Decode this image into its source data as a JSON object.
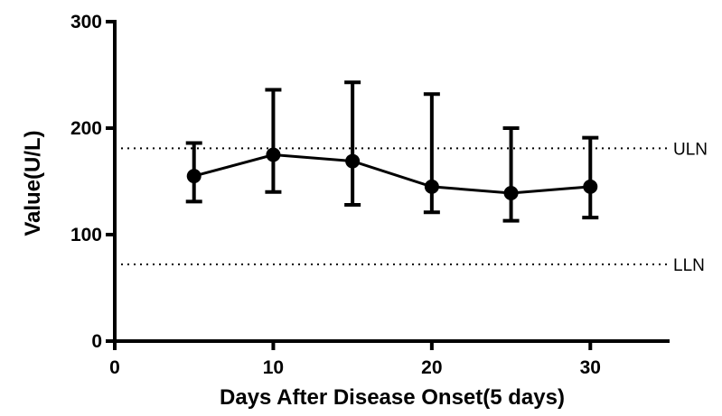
{
  "chart_data": {
    "type": "line",
    "title": "",
    "xlabel": "Days  After  Disease Onset(5 days)",
    "ylabel": "Value(U/L)",
    "xlim": [
      0,
      35
    ],
    "ylim": [
      0,
      300
    ],
    "x_ticks": [
      0,
      10,
      20,
      30
    ],
    "y_ticks": [
      0,
      100,
      200,
      300
    ],
    "grid": false,
    "series": [
      {
        "x": [
          5,
          10,
          15,
          20,
          25,
          30
        ],
        "y": [
          155,
          175,
          169,
          145,
          139,
          145
        ],
        "error_low": [
          131,
          140,
          128,
          121,
          113,
          116
        ],
        "error_high": [
          186,
          236,
          243,
          232,
          200,
          191
        ],
        "color": "#000000"
      }
    ],
    "reference_lines": [
      {
        "label": "ULN",
        "y": 181
      },
      {
        "label": "LLN",
        "y": 72
      }
    ]
  }
}
